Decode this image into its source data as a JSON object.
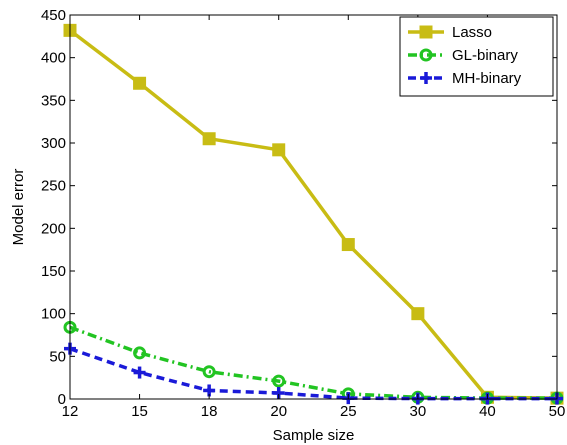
{
  "chart_data": {
    "type": "line",
    "title": "",
    "xlabel": "Sample size",
    "ylabel": "Model error",
    "categories": [
      "12",
      "15",
      "18",
      "20",
      "25",
      "30",
      "40",
      "50"
    ],
    "ylim": [
      0,
      450
    ],
    "yticks": [
      0,
      50,
      100,
      150,
      200,
      250,
      300,
      350,
      400,
      450
    ],
    "grid": false,
    "legend_position": "top-right",
    "series": [
      {
        "name": "Lasso",
        "values": [
          432,
          370,
          305,
          292,
          181,
          100,
          2,
          1
        ],
        "color": "#c8bc14",
        "line_style": "solid",
        "marker": "square"
      },
      {
        "name": "GL-binary",
        "values": [
          84,
          54,
          32,
          21,
          6,
          2,
          1,
          1
        ],
        "color": "#22c422",
        "line_style": "dash-dot",
        "marker": "circle"
      },
      {
        "name": "MH-binary",
        "values": [
          59,
          31,
          10,
          7,
          1,
          0.5,
          0.5,
          0.5
        ],
        "color": "#1a1ad8",
        "line_style": "dashed",
        "marker": "plus"
      }
    ]
  }
}
